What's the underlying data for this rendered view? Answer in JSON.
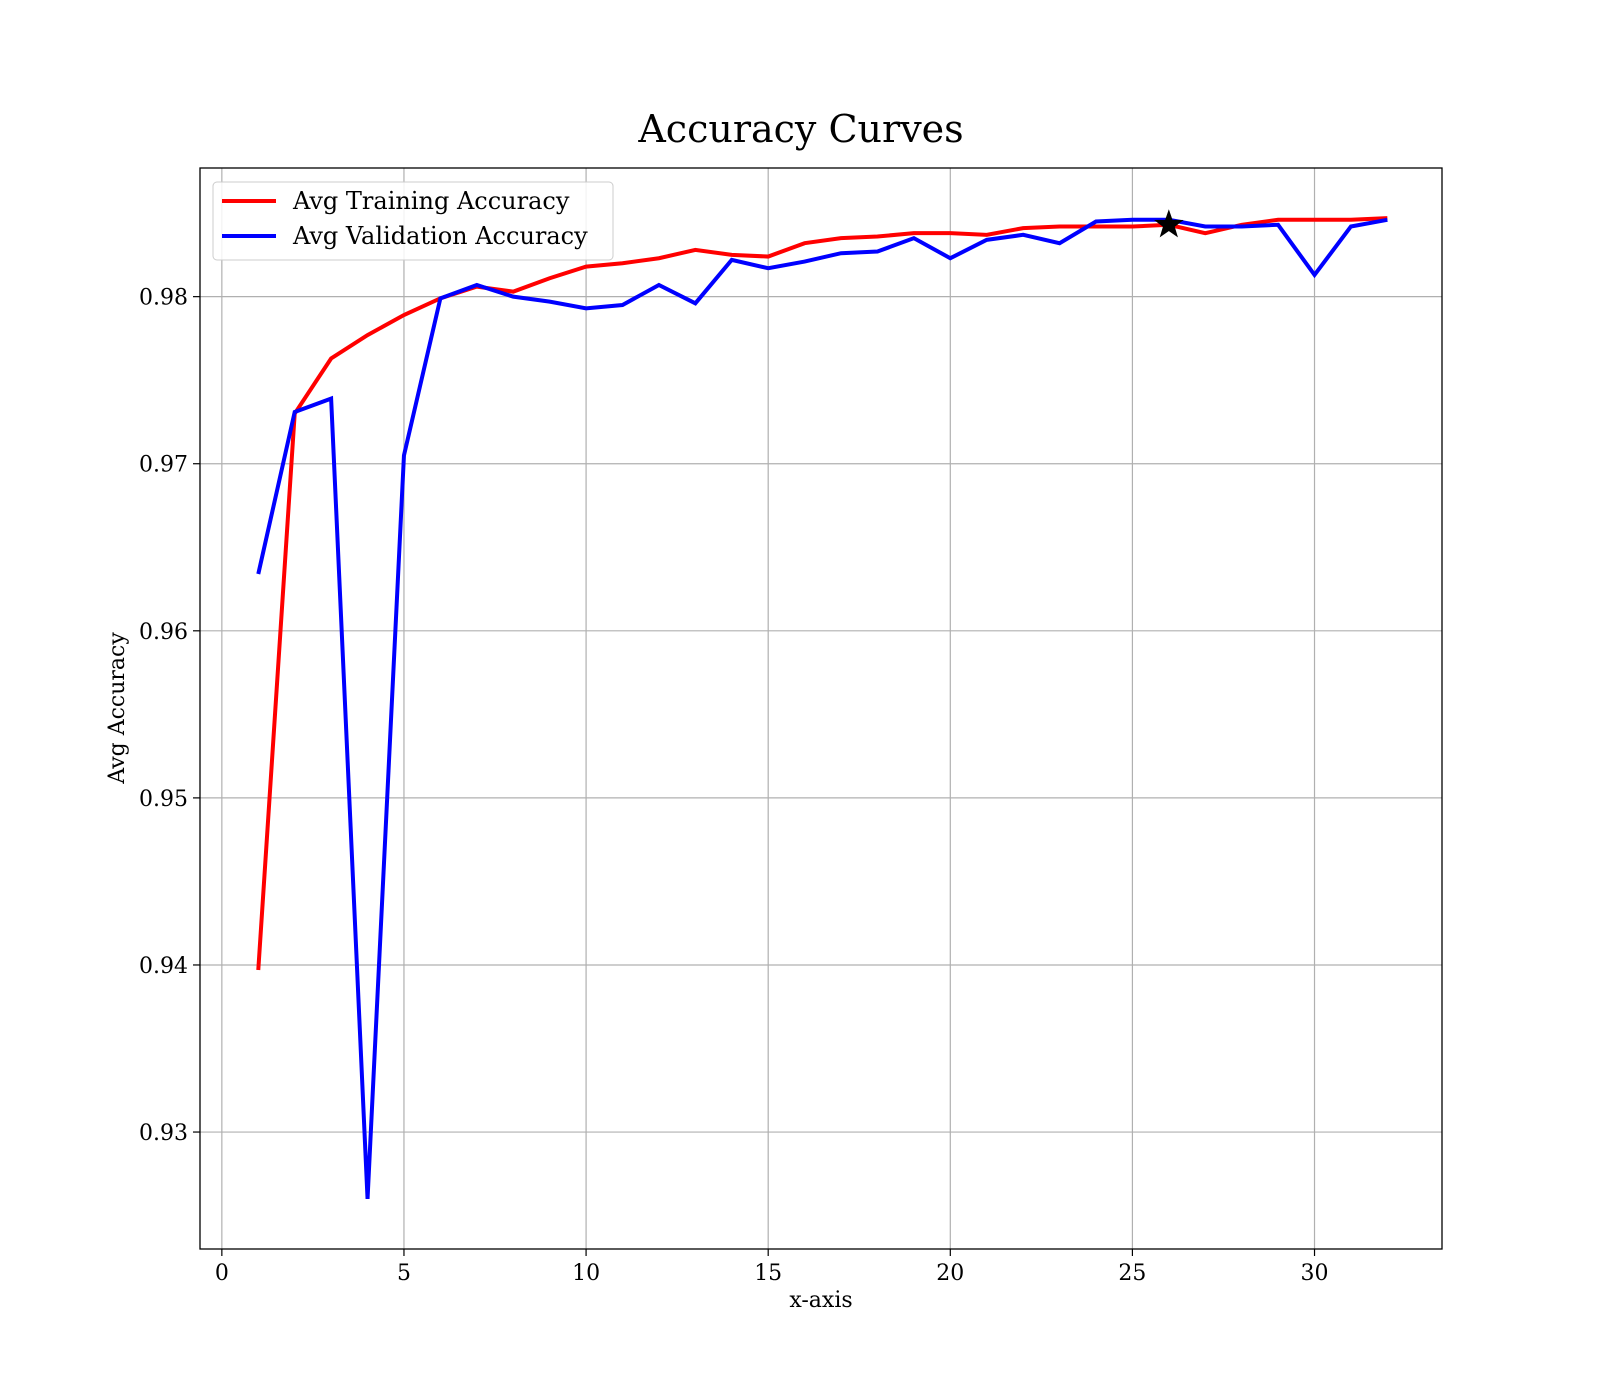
{
  "chart_data": {
    "type": "line",
    "title": "Accuracy Curves",
    "xlabel": "x-axis",
    "ylabel": "Avg Accuracy",
    "xlim": [
      -0.6,
      33.5
    ],
    "ylim": [
      0.923,
      0.9877
    ],
    "xticks": [
      0,
      5,
      10,
      15,
      20,
      25,
      30
    ],
    "yticks": [
      0.93,
      0.94,
      0.95,
      0.96,
      0.97,
      0.98
    ],
    "ytick_labels": [
      "0.93",
      "0.94",
      "0.95",
      "0.96",
      "0.97",
      "0.98"
    ],
    "grid": true,
    "legend_position": "top-left",
    "x": [
      1,
      2,
      3,
      4,
      5,
      6,
      7,
      8,
      9,
      10,
      11,
      12,
      13,
      14,
      15,
      16,
      17,
      18,
      19,
      20,
      21,
      22,
      23,
      24,
      25,
      26,
      27,
      28,
      29,
      30,
      31,
      32
    ],
    "series": [
      {
        "name": "Avg Training Accuracy",
        "color": "#ff0000",
        "values": [
          0.9397,
          0.973,
          0.9763,
          0.9777,
          0.9789,
          0.9799,
          0.9806,
          0.9803,
          0.9811,
          0.9818,
          0.982,
          0.9823,
          0.9828,
          0.9825,
          0.9824,
          0.9832,
          0.9835,
          0.9836,
          0.9838,
          0.9838,
          0.9837,
          0.9841,
          0.9842,
          0.9842,
          0.9842,
          0.9843,
          0.9838,
          0.9843,
          0.9846,
          0.9846,
          0.9846,
          0.9847
        ]
      },
      {
        "name": "Avg Validation Accuracy",
        "color": "#0000ff",
        "values": [
          0.9634,
          0.9731,
          0.9739,
          0.926,
          0.9705,
          0.9799,
          0.9807,
          0.98,
          0.9797,
          0.9793,
          0.9795,
          0.9807,
          0.9796,
          0.9822,
          0.9817,
          0.9821,
          0.9826,
          0.9827,
          0.9835,
          0.9823,
          0.9834,
          0.9837,
          0.9832,
          0.9845,
          0.9846,
          0.9846,
          0.9842,
          0.9842,
          0.9843,
          0.9813,
          0.9842,
          0.9846
        ]
      }
    ],
    "annotations": [
      {
        "marker": "star",
        "color": "#000000",
        "x": 26,
        "y": 0.9843
      }
    ]
  }
}
